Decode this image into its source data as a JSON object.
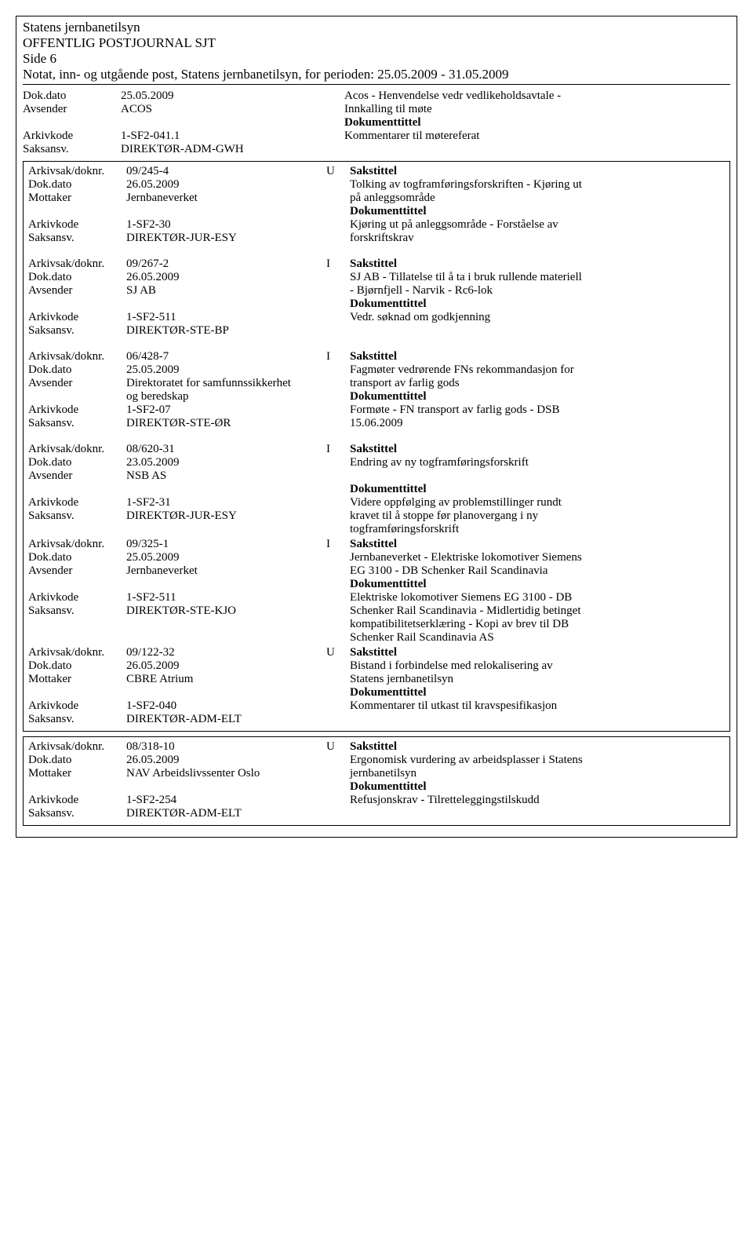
{
  "header": {
    "line1": "Statens jernbanetilsyn",
    "line2": "OFFENTLIG POSTJOURNAL SJT",
    "line3": "Side 6",
    "line4": "Notat, inn- og utgående post, Statens jernbanetilsyn, for perioden: 25.05.2009 - 31.05.2009"
  },
  "labels": {
    "dokdato": "Dok.dato",
    "avsender": "Avsender",
    "mottaker": "Mottaker",
    "arkivkode": "Arkivkode",
    "saksansv": "Saksansv.",
    "arkivsak": "Arkivsak/doknr.",
    "sakstittel": "Sakstittel",
    "dokumenttittel": "Dokumenttittel"
  },
  "top_entry": {
    "dokdato": "25.05.2009",
    "avsender": "ACOS",
    "arkivkode": "1-SF2-041.1",
    "saksansv": "DIREKTØR-ADM-GWH",
    "right1": "Acos - Henvendelse vedr vedlikeholdsavtale -",
    "right2": "Innkalling til møte",
    "right4": "Kommentarer til møtereferat"
  },
  "box1": {
    "e1": {
      "arkivsak": "09/245-4",
      "iu": "U",
      "dokdato": "26.05.2009",
      "party_label": "Mottaker",
      "party": "Jernbaneverket",
      "arkivkode": "1-SF2-30",
      "saksansv": "DIREKTØR-JUR-ESY",
      "st1": "Tolking av togframføringsforskriften - Kjøring ut",
      "st2": "på anleggsområde",
      "dt1": "Kjøring ut på anleggsområde - Forståelse av",
      "dt2": "forskriftskrav"
    },
    "e2": {
      "arkivsak": "09/267-2",
      "iu": "I",
      "dokdato": "26.05.2009",
      "party_label": "Avsender",
      "party": "SJ AB",
      "arkivkode": "1-SF2-511",
      "saksansv": "DIREKTØR-STE-BP",
      "st1": "SJ AB - Tillatelse til å ta i bruk rullende materiell",
      "st2": "- Bjørnfjell - Narvik - Rc6-lok",
      "dt1": "Vedr. søknad om godkjenning",
      "dt2": ""
    },
    "e3": {
      "arkivsak": "06/428-7",
      "iu": "I",
      "dokdato": "25.05.2009",
      "party_label": "Avsender",
      "party1": "Direktoratet for samfunnssikkerhet",
      "party2": "og beredskap",
      "arkivkode": "1-SF2-07",
      "saksansv": "DIREKTØR-STE-ØR",
      "st1": "Fagmøter vedrørende FNs rekommandasjon for",
      "st2": "transport av farlig gods",
      "dt1": "Formøte - FN transport av farlig gods - DSB",
      "dt2": "15.06.2009"
    },
    "e4": {
      "arkivsak": "08/620-31",
      "iu": "I",
      "dokdato": "23.05.2009",
      "party_label": "Avsender",
      "party": "NSB AS",
      "arkivkode": "1-SF2-31",
      "saksansv": "DIREKTØR-JUR-ESY",
      "st1": "Endring av ny togframføringsforskrift",
      "dt1": "Videre oppfølging av problemstillinger rundt",
      "dt2": "kravet til å stoppe før planovergang i ny",
      "dt3": "togframføringsforskrift"
    },
    "e5": {
      "arkivsak": "09/325-1",
      "iu": "I",
      "dokdato": "25.05.2009",
      "party_label": "Avsender",
      "party": "Jernbaneverket",
      "arkivkode": "1-SF2-511",
      "saksansv": "DIREKTØR-STE-KJO",
      "st1": "Jernbaneverket - Elektriske lokomotiver Siemens",
      "st2": "EG 3100 - DB Schenker Rail Scandinavia",
      "dt1": "Elektriske lokomotiver Siemens EG 3100 - DB",
      "dt2": "Schenker Rail Scandinavia - Midlertidig betinget",
      "dt3": "kompatibilitetserklæring - Kopi av brev til DB",
      "dt4": "Schenker Rail Scandinavia AS"
    },
    "e6": {
      "arkivsak": "09/122-32",
      "iu": "U",
      "dokdato": "26.05.2009",
      "party_label": "Mottaker",
      "party": "CBRE Atrium",
      "arkivkode": "1-SF2-040",
      "saksansv": "DIREKTØR-ADM-ELT",
      "st1": "Bistand i forbindelse med relokalisering av",
      "st2": "Statens jernbanetilsyn",
      "dt1": "Kommentarer til utkast til kravspesifikasjon"
    }
  },
  "box2": {
    "e1": {
      "arkivsak": "08/318-10",
      "iu": "U",
      "dokdato": "26.05.2009",
      "party_label": "Mottaker",
      "party": "NAV Arbeidslivssenter Oslo",
      "arkivkode": "1-SF2-254",
      "saksansv": "DIREKTØR-ADM-ELT",
      "st1": "Ergonomisk vurdering av arbeidsplasser i Statens",
      "st2": "jernbanetilsyn",
      "dt1": "Refusjonskrav - Tilretteleggingstilskudd"
    }
  }
}
